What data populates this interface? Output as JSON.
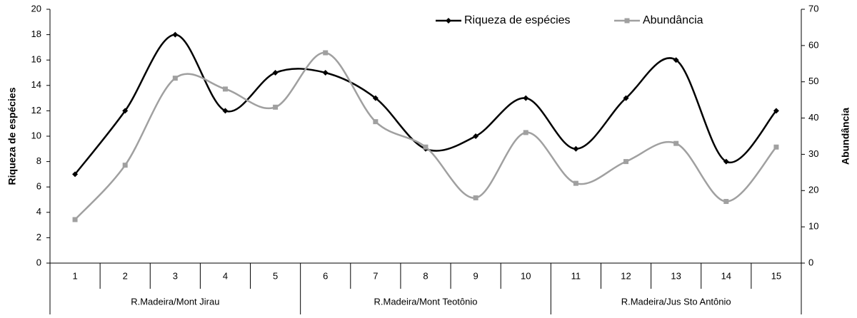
{
  "chart_data": {
    "type": "line",
    "categories": [
      "1",
      "2",
      "3",
      "4",
      "5",
      "6",
      "7",
      "8",
      "9",
      "10",
      "11",
      "12",
      "13",
      "14",
      "15"
    ],
    "groups": [
      "R.Madeira/Mont Jirau",
      "R.Madeira/Mont Teotônio",
      "R.Madeira/Jus Sto Antônio"
    ],
    "series": [
      {
        "name": "Riqueza de espécies",
        "color": "#000000",
        "marker": "diamond",
        "values": [
          7,
          12,
          18,
          12,
          15,
          15,
          13,
          9,
          10,
          13,
          9,
          13,
          16,
          8,
          12
        ]
      },
      {
        "name": "Abundância",
        "color": "#a0a0a0",
        "marker": "square",
        "axis": "y2",
        "values": [
          12,
          27,
          51,
          48,
          43,
          58,
          39,
          32,
          18,
          36,
          22,
          28,
          33,
          17,
          32
        ]
      }
    ],
    "ylabel": "Riqueza de espécies",
    "y2label": "Abundância",
    "ylim": [
      0,
      20
    ],
    "yticks": [
      0,
      2,
      4,
      6,
      8,
      10,
      12,
      14,
      16,
      18,
      20
    ],
    "y2lim": [
      0,
      70
    ],
    "y2ticks": [
      0,
      10,
      20,
      30,
      40,
      50,
      60,
      70
    ],
    "smooth": true,
    "legend": "top"
  }
}
